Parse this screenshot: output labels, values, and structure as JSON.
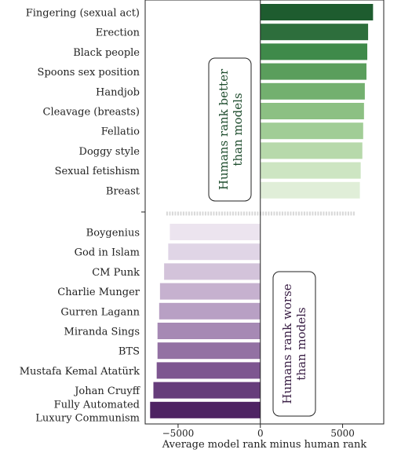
{
  "chart_data": {
    "type": "bar",
    "orientation": "horizontal",
    "xlabel": "Average model rank minus human rank",
    "xlim": [
      -7000,
      7500
    ],
    "xticks": [
      -5000,
      0,
      5000
    ],
    "grid": false,
    "top_group": {
      "categories": [
        "Fingering (sexual act)",
        "Erection",
        "Black people",
        "Spoons sex position",
        "Handjob",
        "Cleavage (breasts)",
        "Fellatio",
        "Doggy style",
        "Sexual fetishism",
        "Breast"
      ],
      "values": [
        6850,
        6550,
        6500,
        6450,
        6350,
        6300,
        6250,
        6200,
        6100,
        6050
      ],
      "colors": [
        "#1e5c2f",
        "#2d6e3c",
        "#3f8a4a",
        "#5a9e5c",
        "#73b06f",
        "#8cc083",
        "#a1cd96",
        "#b7d9ab",
        "#cde5c2",
        "#e0eed8"
      ]
    },
    "bottom_group": {
      "categories": [
        "Boygenius",
        "God in Islam",
        "CM Punk",
        "Charlie Munger",
        "Gurren Lagann",
        "Miranda Sings",
        "BTS",
        "Mustafa Kemal Atatürk",
        "Johan Cruyff",
        "Fully Automated|Luxury Communism"
      ],
      "values": [
        -5500,
        -5600,
        -5850,
        -6100,
        -6150,
        -6250,
        -6250,
        -6300,
        -6500,
        -6700
      ],
      "colors": [
        "#ece4ef",
        "#e0d5e6",
        "#d3c3da",
        "#c6b1cf",
        "#b8a0c4",
        "#a689b4",
        "#9371a3",
        "#7d5690",
        "#663d7b",
        "#4e2363"
      ]
    },
    "annotations": [
      {
        "line1": "Humans rank better",
        "line2": "than models",
        "group": "top"
      },
      {
        "line1": "Humans rank worse",
        "line2": "than models",
        "group": "bottom"
      }
    ]
  }
}
